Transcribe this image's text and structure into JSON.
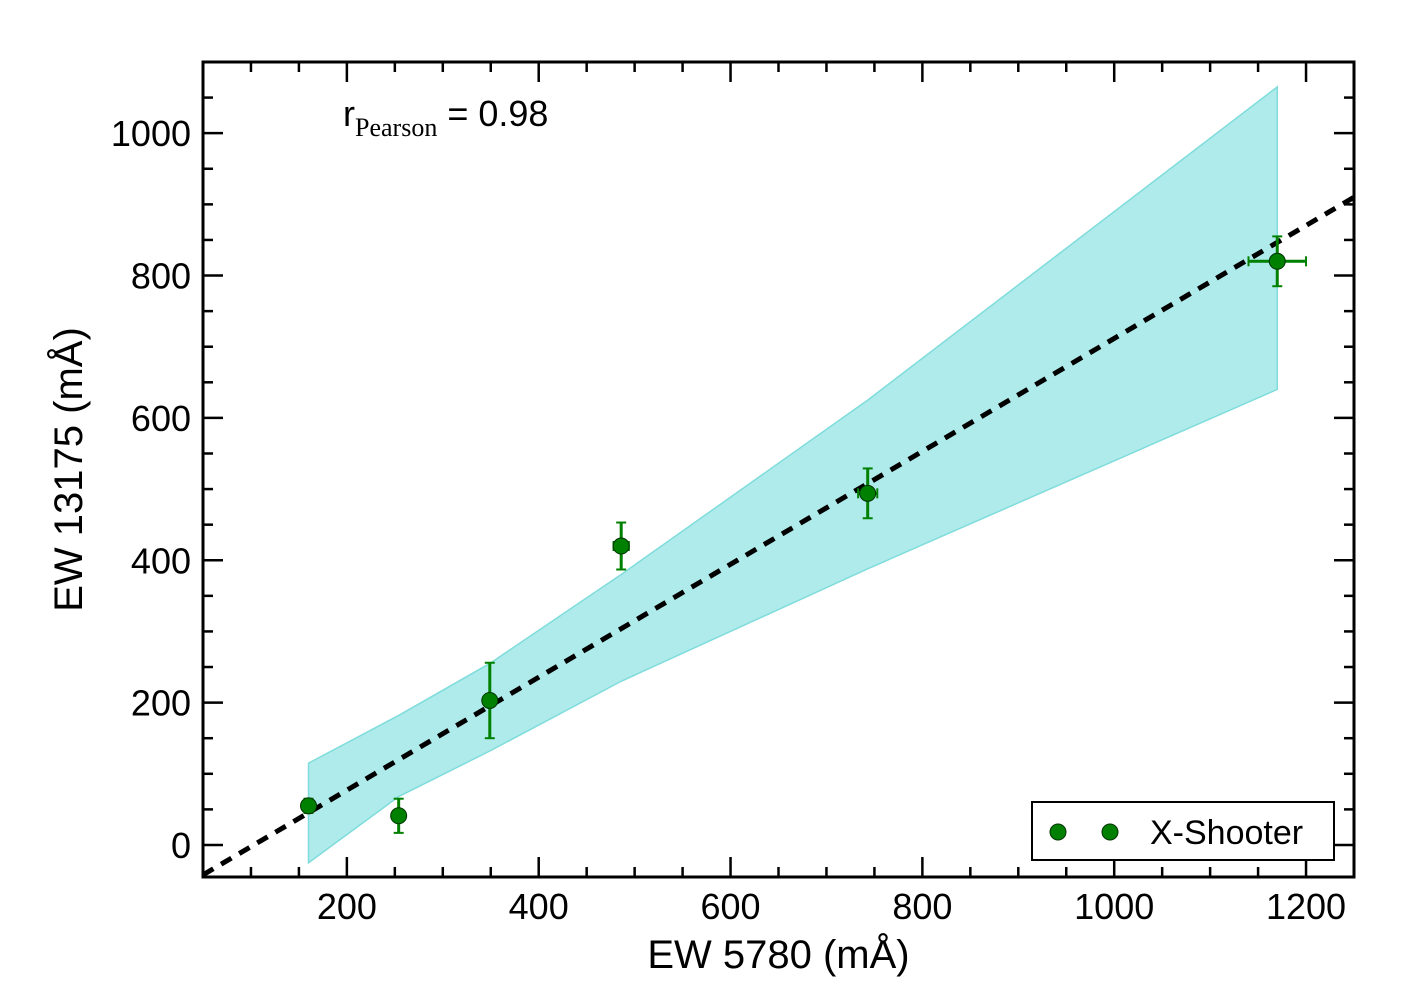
{
  "chart_data": {
    "type": "scatter",
    "xlabel": "EW 5780 (mÅ)",
    "ylabel": "EW 13175 (mÅ)",
    "xlim": [
      50,
      1250
    ],
    "ylim": [
      -45,
      1100
    ],
    "xticks": [
      200,
      400,
      600,
      800,
      1000,
      1200
    ],
    "yticks": [
      0,
      200,
      400,
      600,
      800,
      1000
    ],
    "xticks_minor_step": 50,
    "yticks_minor_step": 50,
    "annotation": {
      "main": "r",
      "subscript": "Pearson",
      "suffix": " = 0.98"
    },
    "series": [
      {
        "name": "X-Shooter",
        "color": "#008000",
        "points": [
          {
            "x": 160,
            "y": 55,
            "xerr": 4,
            "yerr": 10
          },
          {
            "x": 254,
            "y": 41,
            "xerr": 4,
            "yerr": 24
          },
          {
            "x": 349,
            "y": 203,
            "xerr": 6,
            "yerr": 53
          },
          {
            "x": 486,
            "y": 420,
            "xerr": 8,
            "yerr": 33
          },
          {
            "x": 743,
            "y": 494,
            "xerr": 10,
            "yerr": 35
          },
          {
            "x": 1170,
            "y": 820,
            "xerr": 30,
            "yerr": 35
          }
        ]
      }
    ],
    "fit_line": {
      "style": "dashed",
      "color": "#000000",
      "x": [
        50,
        1250
      ],
      "y": [
        -42,
        910
      ]
    },
    "confidence_band": {
      "color": "#b0ebeb",
      "edge_color": "#7fdcdc",
      "x": [
        160,
        254,
        349,
        486,
        743,
        1170
      ],
      "lower": [
        -25,
        68,
        132,
        230,
        388,
        640
      ],
      "upper": [
        115,
        182,
        255,
        380,
        625,
        1065
      ]
    },
    "legend": {
      "position": "lower-right",
      "label": "X-Shooter"
    }
  }
}
